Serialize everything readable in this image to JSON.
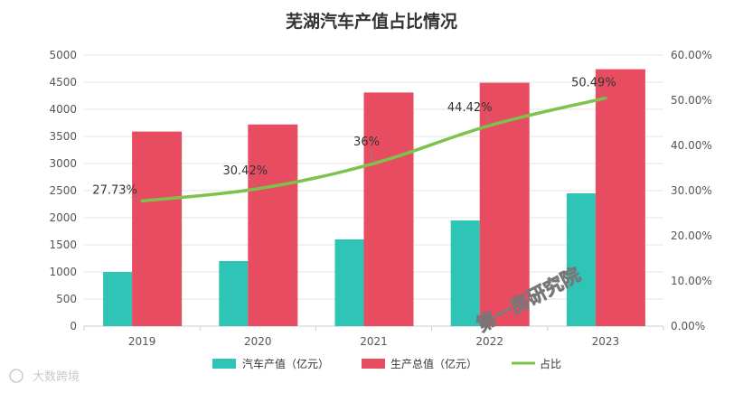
{
  "chart_data": {
    "type": "bar",
    "title": "芜湖汽车产值占比情况",
    "categories": [
      "2019",
      "2020",
      "2021",
      "2022",
      "2023"
    ],
    "series": [
      {
        "name": "汽车产值（亿元）",
        "type": "bar",
        "axis": "left",
        "color": "#2ec4b6",
        "values": [
          1000,
          1200,
          1600,
          1950,
          2450
        ]
      },
      {
        "name": "生产总值（亿元）",
        "type": "bar",
        "axis": "left",
        "color": "#e84c61",
        "values": [
          3590,
          3720,
          4310,
          4490,
          4740
        ]
      },
      {
        "name": "占比",
        "type": "line",
        "axis": "right",
        "color": "#7dc24b",
        "values": [
          27.73,
          30.42,
          36,
          44.42,
          50.49
        ],
        "labels": [
          "27.73%",
          "30.42%",
          "36%",
          "44.42%",
          "50.49%"
        ]
      }
    ],
    "y_left": {
      "min": 0,
      "max": 5000,
      "step": 500,
      "ticks": [
        "0",
        "500",
        "1000",
        "1500",
        "2000",
        "2500",
        "3000",
        "3500",
        "4000",
        "4500",
        "5000"
      ]
    },
    "y_right": {
      "min": 0,
      "max": 60,
      "step": 10,
      "ticks": [
        "0.00%",
        "10.00%",
        "20.00%",
        "30.00%",
        "40.00%",
        "50.00%",
        "60.00%"
      ]
    },
    "grid": true,
    "legend_position": "bottom"
  },
  "watermark": {
    "text": "第一房研究院"
  },
  "logo": {
    "text": "大数跨境"
  }
}
